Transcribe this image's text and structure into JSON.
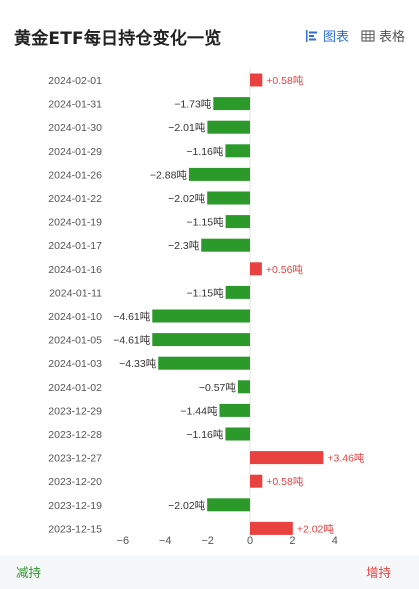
{
  "header": {
    "title": "黄金ETF每日持仓变化一览",
    "tabs": [
      {
        "label": "图表",
        "icon": "bar-chart-icon",
        "active": true
      },
      {
        "label": "表格",
        "icon": "table-icon",
        "active": false
      }
    ]
  },
  "colors": {
    "positive": "#e8413f",
    "negative": "#2b9a2b",
    "active_tab": "#2f6fd6"
  },
  "footer": {
    "left_label": "减持",
    "right_label": "增持"
  },
  "chart_data": {
    "type": "bar",
    "orientation": "horizontal",
    "unit": "吨",
    "xlim": [
      -7,
      7
    ],
    "x_ticks": [
      -6,
      -4,
      -2,
      0,
      2,
      4
    ],
    "x_tick_labels": [
      "−6",
      "−4",
      "−2",
      "0",
      "2",
      "4"
    ],
    "categories": [
      "2024-02-01",
      "2024-01-31",
      "2024-01-30",
      "2024-01-29",
      "2024-01-26",
      "2024-01-22",
      "2024-01-19",
      "2024-01-17",
      "2024-01-16",
      "2024-01-11",
      "2024-01-10",
      "2024-01-05",
      "2024-01-03",
      "2024-01-02",
      "2023-12-29",
      "2023-12-28",
      "2023-12-27",
      "2023-12-20",
      "2023-12-19",
      "2023-12-15"
    ],
    "values": [
      0.58,
      -1.73,
      -2.01,
      -1.16,
      -2.88,
      -2.02,
      -1.15,
      -2.3,
      0.56,
      -1.15,
      -4.61,
      -4.61,
      -4.33,
      -0.57,
      -1.44,
      -1.16,
      3.46,
      0.58,
      -2.02,
      2.02
    ],
    "labels": [
      "+0.58吨",
      "−1.73吨",
      "−2.01吨",
      "−1.16吨",
      "−2.88吨",
      "−2.02吨",
      "−1.15吨",
      "−2.3吨",
      "+0.56吨",
      "−1.15吨",
      "−4.61吨",
      "−4.61吨",
      "−4.33吨",
      "−0.57吨",
      "−1.44吨",
      "−1.16吨",
      "+3.46吨",
      "+0.58吨",
      "−2.02吨",
      "+2.02吨"
    ]
  }
}
